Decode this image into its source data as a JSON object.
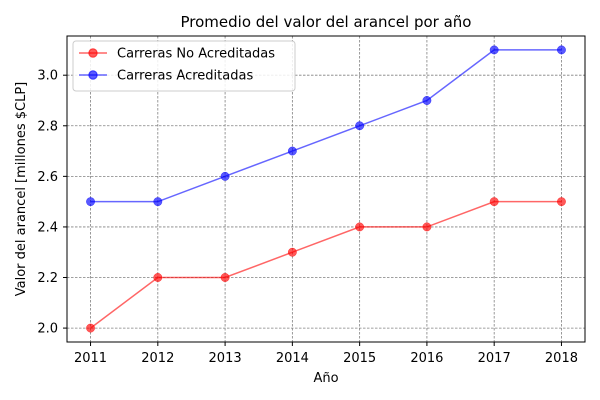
{
  "chart_data": {
    "type": "line",
    "title": "Promedio del valor del arancel por año",
    "xlabel": "Año",
    "ylabel": "Valor del arancel [millones $CLP]",
    "x": [
      2011,
      2012,
      2013,
      2014,
      2015,
      2016,
      2017,
      2018
    ],
    "xticks": [
      "2011",
      "2012",
      "2013",
      "2014",
      "2015",
      "2016",
      "2017",
      "2018"
    ],
    "yticks": [
      "2.0",
      "2.2",
      "2.4",
      "2.6",
      "2.8",
      "3.0"
    ],
    "xlim": [
      2010.65,
      2018.35
    ],
    "ylim": [
      1.945,
      3.155
    ],
    "grid": true,
    "legend_position": "upper-left",
    "series": [
      {
        "name": "Carreras No Acreditadas",
        "color": "#ff0000",
        "values": [
          2.0,
          2.2,
          2.2,
          2.3,
          2.4,
          2.4,
          2.5,
          2.5
        ]
      },
      {
        "name": "Carreras Acreditadas",
        "color": "#0000ff",
        "values": [
          2.5,
          2.5,
          2.6,
          2.7,
          2.8,
          2.9,
          3.1,
          3.1
        ]
      }
    ]
  }
}
